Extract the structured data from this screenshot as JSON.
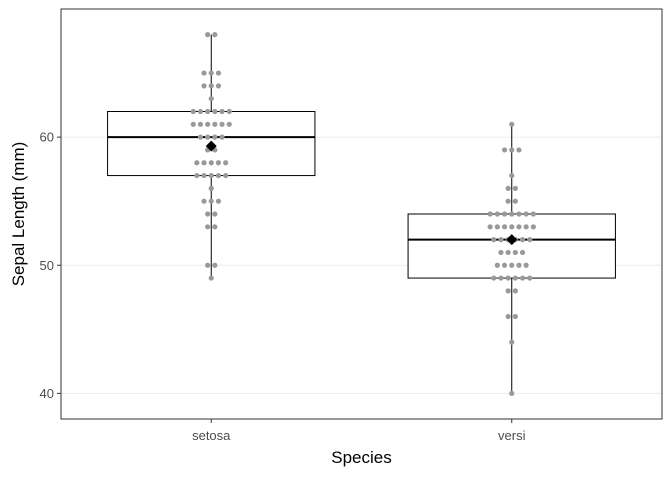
{
  "chart_data": {
    "type": "boxplot",
    "xlabel": "Species",
    "ylabel": "Sepal Length (mm)",
    "ylim": [
      38,
      70
    ],
    "y_ticks": [
      40,
      50,
      60
    ],
    "grid": {
      "horizontal": true,
      "vertical": false
    },
    "categories": [
      "setosa",
      "versi"
    ],
    "boxes": [
      {
        "category": "setosa",
        "min": 49,
        "q1": 57,
        "median": 60,
        "q3": 62,
        "max": 68,
        "mean": 59.3
      },
      {
        "category": "versi",
        "min": 40,
        "q1": 49,
        "median": 52,
        "q3": 54,
        "max": 61,
        "mean": 52
      }
    ],
    "points": {
      "setosa": [
        49,
        50,
        50,
        53,
        53,
        54,
        54,
        55,
        55,
        55,
        56,
        57,
        57,
        57,
        57,
        57,
        58,
        58,
        58,
        58,
        58,
        59,
        59,
        60,
        60,
        60,
        60,
        61,
        61,
        61,
        61,
        61,
        61,
        62,
        62,
        62,
        62,
        62,
        62,
        63,
        64,
        64,
        64,
        65,
        65,
        65,
        68,
        68
      ],
      "versi": [
        40,
        44,
        46,
        46,
        48,
        48,
        49,
        49,
        49,
        49,
        49,
        49,
        50,
        50,
        50,
        50,
        50,
        51,
        51,
        51,
        51,
        52,
        52,
        52,
        52,
        52,
        52,
        53,
        53,
        53,
        53,
        53,
        53,
        53,
        54,
        54,
        54,
        54,
        54,
        54,
        54,
        55,
        55,
        56,
        56,
        57,
        59,
        59,
        59,
        61
      ]
    },
    "colors": {
      "points": "#999999",
      "mean": "#000000",
      "box": "#000000",
      "grid": "#ebebeb",
      "panel_border": "#333333"
    }
  }
}
